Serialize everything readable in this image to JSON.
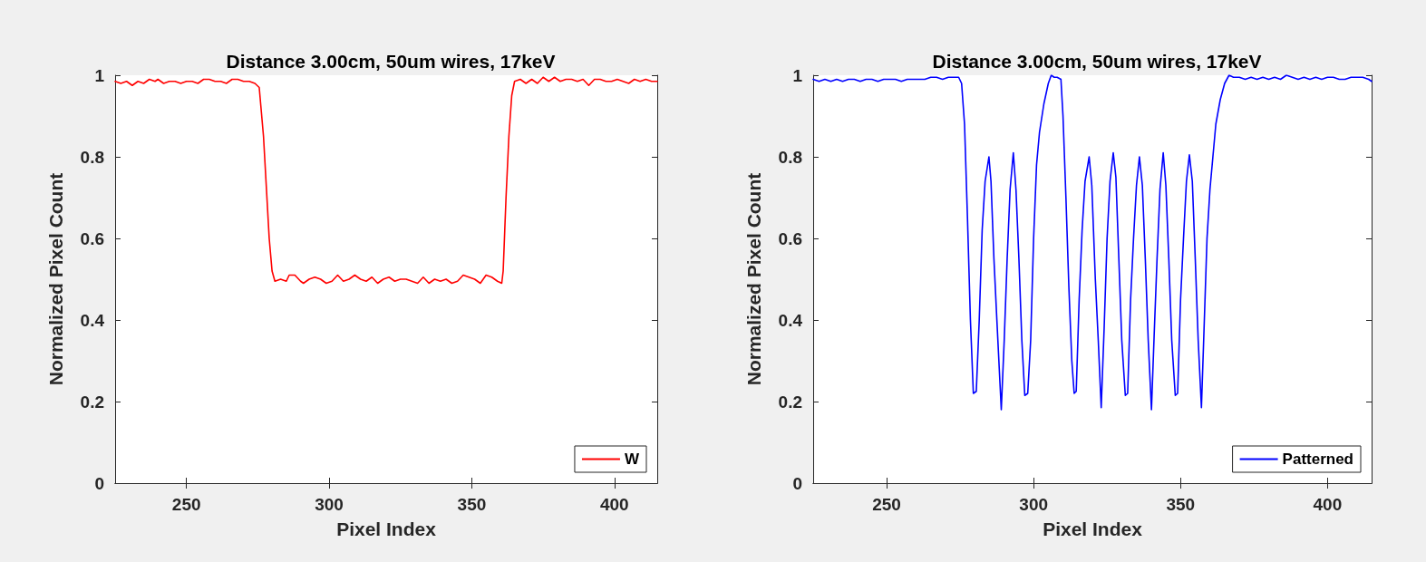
{
  "chart_data": [
    {
      "type": "line",
      "title": "Distance 3.00cm, 50um wires, 17keV",
      "xlabel": "Pixel Index",
      "ylabel": "Normalized Pixel Count",
      "xlim": [
        225,
        415
      ],
      "xticks": [
        250,
        300,
        350,
        400
      ],
      "ylim": [
        0,
        1
      ],
      "yticks": [
        0,
        0.2,
        0.4,
        0.6,
        0.8,
        1
      ],
      "grid": false,
      "legend": "bottom right",
      "marker": "none",
      "line_style": "solid",
      "series": [
        {
          "name": "W",
          "color": "#ff0000",
          "x": [
            225,
            227,
            229,
            231,
            233,
            235,
            237,
            239,
            240,
            242,
            244,
            246,
            248,
            250,
            252,
            254,
            256,
            258,
            260,
            262,
            264,
            266,
            268,
            270,
            272,
            274,
            275.5,
            277,
            279,
            280,
            281,
            283,
            285,
            286,
            288,
            290,
            291,
            293,
            295,
            297,
            299,
            301,
            303,
            305,
            307,
            309,
            311,
            313,
            315,
            317,
            319,
            321,
            323,
            325,
            327,
            329,
            331,
            333,
            335,
            337,
            339,
            341,
            343,
            345,
            347,
            349,
            351,
            353,
            355,
            357,
            359,
            360.5,
            361,
            362,
            363,
            364,
            365,
            367,
            369,
            371,
            373,
            375,
            377,
            379,
            381,
            383,
            385,
            387,
            389,
            391,
            393,
            395,
            397,
            399,
            401,
            403,
            405,
            407,
            409,
            411,
            413,
            415
          ],
          "values": [
            0.985,
            0.98,
            0.985,
            0.975,
            0.985,
            0.98,
            0.99,
            0.985,
            0.99,
            0.98,
            0.985,
            0.985,
            0.98,
            0.985,
            0.985,
            0.98,
            0.99,
            0.99,
            0.985,
            0.985,
            0.98,
            0.99,
            0.99,
            0.985,
            0.985,
            0.98,
            0.97,
            0.85,
            0.6,
            0.52,
            0.495,
            0.5,
            0.495,
            0.51,
            0.51,
            0.495,
            0.49,
            0.5,
            0.505,
            0.5,
            0.49,
            0.495,
            0.51,
            0.495,
            0.5,
            0.51,
            0.5,
            0.495,
            0.505,
            0.49,
            0.5,
            0.505,
            0.495,
            0.5,
            0.5,
            0.495,
            0.49,
            0.505,
            0.49,
            0.5,
            0.495,
            0.5,
            0.49,
            0.495,
            0.51,
            0.505,
            0.5,
            0.49,
            0.51,
            0.505,
            0.495,
            0.49,
            0.52,
            0.7,
            0.85,
            0.95,
            0.985,
            0.99,
            0.98,
            0.99,
            0.98,
            0.995,
            0.985,
            0.995,
            0.985,
            0.99,
            0.99,
            0.985,
            0.99,
            0.975,
            0.99,
            0.99,
            0.985,
            0.985,
            0.99,
            0.985,
            0.98,
            0.99,
            0.985,
            0.99,
            0.985,
            0.985
          ]
        }
      ]
    },
    {
      "type": "line",
      "title": "Distance 3.00cm, 50um wires, 17keV",
      "xlabel": "Pixel Index",
      "ylabel": "Normalized Pixel Count",
      "xlim": [
        225,
        415
      ],
      "xticks": [
        250,
        300,
        350,
        400
      ],
      "ylim": [
        0,
        1
      ],
      "yticks": [
        0,
        0.2,
        0.4,
        0.6,
        0.8,
        1
      ],
      "grid": false,
      "legend": "bottom right",
      "marker": "none",
      "line_style": "solid",
      "series": [
        {
          "name": "Patterned",
          "color": "#0000ff",
          "x": [
            225,
            227,
            229,
            231,
            233,
            235,
            237,
            239,
            241,
            243,
            245,
            247,
            249,
            251,
            253,
            255,
            257,
            259,
            261,
            263,
            265,
            267,
            269,
            271,
            273,
            274.5,
            275.5,
            276.5,
            277.5,
            278.5,
            279.5,
            280.5,
            281.5,
            282.5,
            283.5,
            284.8,
            285.5,
            286.5,
            287.5,
            289,
            290,
            291,
            292,
            293.1,
            294,
            295,
            296,
            297,
            298,
            299,
            300,
            301,
            302,
            303.5,
            305,
            306,
            307,
            308,
            309.3,
            310,
            311,
            312,
            313,
            313.8,
            314.5,
            315.5,
            316.5,
            317.5,
            318.9,
            319.8,
            321,
            322,
            323,
            324,
            325,
            326,
            327.1,
            328,
            329,
            330,
            331.2,
            332,
            333,
            334,
            335,
            336,
            337,
            338,
            339,
            340.1,
            341,
            342,
            343,
            344.1,
            345,
            346,
            347,
            348.2,
            349,
            350,
            351,
            352,
            353,
            354,
            355,
            356,
            357.1,
            358,
            359,
            360,
            361,
            362,
            363.5,
            365,
            366.5,
            368,
            370,
            372,
            374,
            376,
            378,
            380,
            382,
            384,
            386,
            388,
            390,
            392,
            394,
            396,
            398,
            400,
            402,
            404,
            406,
            408,
            410,
            412,
            414,
            415
          ],
          "values": [
            0.99,
            0.985,
            0.99,
            0.985,
            0.99,
            0.985,
            0.99,
            0.99,
            0.985,
            0.99,
            0.99,
            0.985,
            0.99,
            0.99,
            0.99,
            0.985,
            0.99,
            0.99,
            0.99,
            0.99,
            0.995,
            0.995,
            0.99,
            0.995,
            0.995,
            0.995,
            0.98,
            0.88,
            0.65,
            0.4,
            0.22,
            0.225,
            0.4,
            0.62,
            0.74,
            0.8,
            0.74,
            0.55,
            0.4,
            0.18,
            0.35,
            0.55,
            0.72,
            0.81,
            0.72,
            0.55,
            0.35,
            0.215,
            0.22,
            0.35,
            0.6,
            0.78,
            0.86,
            0.93,
            0.98,
            1.0,
            0.995,
            0.995,
            0.99,
            0.9,
            0.7,
            0.48,
            0.3,
            0.22,
            0.225,
            0.45,
            0.62,
            0.74,
            0.8,
            0.73,
            0.5,
            0.35,
            0.185,
            0.38,
            0.6,
            0.74,
            0.81,
            0.75,
            0.55,
            0.35,
            0.215,
            0.22,
            0.45,
            0.6,
            0.73,
            0.8,
            0.73,
            0.55,
            0.35,
            0.18,
            0.36,
            0.55,
            0.72,
            0.81,
            0.73,
            0.55,
            0.35,
            0.215,
            0.22,
            0.45,
            0.6,
            0.74,
            0.805,
            0.74,
            0.55,
            0.35,
            0.185,
            0.38,
            0.6,
            0.72,
            0.8,
            0.88,
            0.94,
            0.98,
            1.0,
            0.995,
            0.995,
            0.99,
            0.995,
            0.99,
            0.995,
            0.99,
            0.995,
            0.99,
            1.0,
            0.995,
            0.99,
            0.995,
            0.99,
            0.995,
            0.99,
            0.995,
            0.995,
            0.99,
            0.99,
            0.995,
            0.995,
            0.995,
            0.99,
            0.985
          ]
        }
      ]
    }
  ]
}
